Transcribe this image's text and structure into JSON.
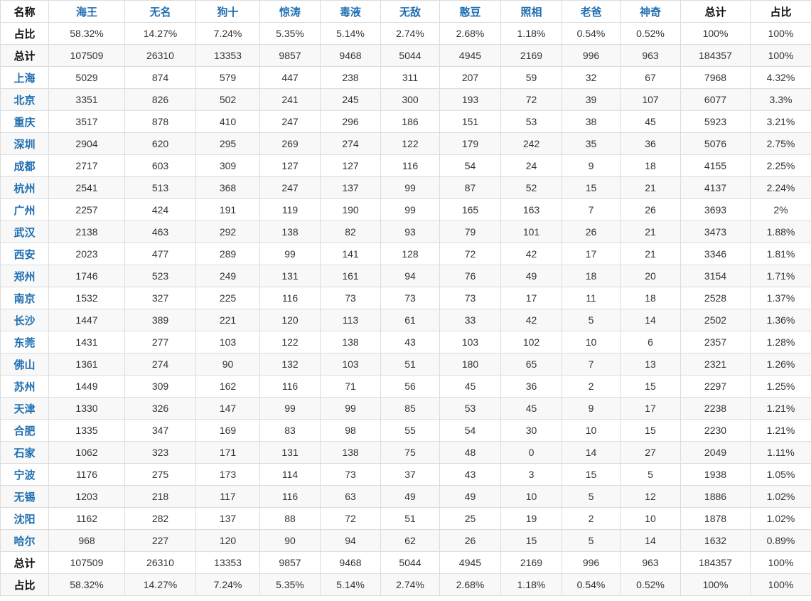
{
  "header": {
    "name_label": "名称",
    "movies": [
      "海王",
      "无名",
      "狗十",
      "惊涛",
      "毒液",
      "无敌",
      "憨豆",
      "照相",
      "老爸",
      "神奇"
    ],
    "total_label": "总计",
    "share_label": "占比"
  },
  "top_rows": [
    {
      "label": "占比",
      "values": [
        "58.32%",
        "14.27%",
        "7.24%",
        "5.35%",
        "5.14%",
        "2.74%",
        "2.68%",
        "1.18%",
        "0.54%",
        "0.52%",
        "100%",
        "100%"
      ]
    },
    {
      "label": "总计",
      "values": [
        "107509",
        "26310",
        "13353",
        "9857",
        "9468",
        "5044",
        "4945",
        "2169",
        "996",
        "963",
        "184357",
        "100%"
      ]
    }
  ],
  "cities": [
    {
      "city": "上海",
      "values": [
        "5029",
        "874",
        "579",
        "447",
        "238",
        "311",
        "207",
        "59",
        "32",
        "67",
        "7968",
        "4.32%"
      ]
    },
    {
      "city": "北京",
      "values": [
        "3351",
        "826",
        "502",
        "241",
        "245",
        "300",
        "193",
        "72",
        "39",
        "107",
        "6077",
        "3.3%"
      ]
    },
    {
      "city": "重庆",
      "values": [
        "3517",
        "878",
        "410",
        "247",
        "296",
        "186",
        "151",
        "53",
        "38",
        "45",
        "5923",
        "3.21%"
      ]
    },
    {
      "city": "深圳",
      "values": [
        "2904",
        "620",
        "295",
        "269",
        "274",
        "122",
        "179",
        "242",
        "35",
        "36",
        "5076",
        "2.75%"
      ]
    },
    {
      "city": "成都",
      "values": [
        "2717",
        "603",
        "309",
        "127",
        "127",
        "116",
        "54",
        "24",
        "9",
        "18",
        "4155",
        "2.25%"
      ]
    },
    {
      "city": "杭州",
      "values": [
        "2541",
        "513",
        "368",
        "247",
        "137",
        "99",
        "87",
        "52",
        "15",
        "21",
        "4137",
        "2.24%"
      ]
    },
    {
      "city": "广州",
      "values": [
        "2257",
        "424",
        "191",
        "119",
        "190",
        "99",
        "165",
        "163",
        "7",
        "26",
        "3693",
        "2%"
      ]
    },
    {
      "city": "武汉",
      "values": [
        "2138",
        "463",
        "292",
        "138",
        "82",
        "93",
        "79",
        "101",
        "26",
        "21",
        "3473",
        "1.88%"
      ]
    },
    {
      "city": "西安",
      "values": [
        "2023",
        "477",
        "289",
        "99",
        "141",
        "128",
        "72",
        "42",
        "17",
        "21",
        "3346",
        "1.81%"
      ]
    },
    {
      "city": "郑州",
      "values": [
        "1746",
        "523",
        "249",
        "131",
        "161",
        "94",
        "76",
        "49",
        "18",
        "20",
        "3154",
        "1.71%"
      ]
    },
    {
      "city": "南京",
      "values": [
        "1532",
        "327",
        "225",
        "116",
        "73",
        "73",
        "73",
        "17",
        "11",
        "18",
        "2528",
        "1.37%"
      ]
    },
    {
      "city": "长沙",
      "values": [
        "1447",
        "389",
        "221",
        "120",
        "113",
        "61",
        "33",
        "42",
        "5",
        "14",
        "2502",
        "1.36%"
      ]
    },
    {
      "city": "东莞",
      "values": [
        "1431",
        "277",
        "103",
        "122",
        "138",
        "43",
        "103",
        "102",
        "10",
        "6",
        "2357",
        "1.28%"
      ]
    },
    {
      "city": "佛山",
      "values": [
        "1361",
        "274",
        "90",
        "132",
        "103",
        "51",
        "180",
        "65",
        "7",
        "13",
        "2321",
        "1.26%"
      ]
    },
    {
      "city": "苏州",
      "values": [
        "1449",
        "309",
        "162",
        "116",
        "71",
        "56",
        "45",
        "36",
        "2",
        "15",
        "2297",
        "1.25%"
      ]
    },
    {
      "city": "天津",
      "values": [
        "1330",
        "326",
        "147",
        "99",
        "99",
        "85",
        "53",
        "45",
        "9",
        "17",
        "2238",
        "1.21%"
      ]
    },
    {
      "city": "合肥",
      "values": [
        "1335",
        "347",
        "169",
        "83",
        "98",
        "55",
        "54",
        "30",
        "10",
        "15",
        "2230",
        "1.21%"
      ]
    },
    {
      "city": "石家",
      "values": [
        "1062",
        "323",
        "171",
        "131",
        "138",
        "75",
        "48",
        "0",
        "14",
        "27",
        "2049",
        "1.11%"
      ]
    },
    {
      "city": "宁波",
      "values": [
        "1176",
        "275",
        "173",
        "114",
        "73",
        "37",
        "43",
        "3",
        "15",
        "5",
        "1938",
        "1.05%"
      ]
    },
    {
      "city": "无锡",
      "values": [
        "1203",
        "218",
        "117",
        "116",
        "63",
        "49",
        "49",
        "10",
        "5",
        "12",
        "1886",
        "1.02%"
      ]
    },
    {
      "city": "沈阳",
      "values": [
        "1162",
        "282",
        "137",
        "88",
        "72",
        "51",
        "25",
        "19",
        "2",
        "10",
        "1878",
        "1.02%"
      ]
    },
    {
      "city": "哈尔",
      "values": [
        "968",
        "227",
        "120",
        "90",
        "94",
        "62",
        "26",
        "15",
        "5",
        "14",
        "1632",
        "0.89%"
      ]
    }
  ],
  "bottom_rows": [
    {
      "label": "总计",
      "values": [
        "107509",
        "26310",
        "13353",
        "9857",
        "9468",
        "5044",
        "4945",
        "2169",
        "996",
        "963",
        "184357",
        "100%"
      ]
    },
    {
      "label": "占比",
      "values": [
        "58.32%",
        "14.27%",
        "7.24%",
        "5.35%",
        "5.14%",
        "2.74%",
        "2.68%",
        "1.18%",
        "0.54%",
        "0.52%",
        "100%",
        "100%"
      ]
    }
  ]
}
